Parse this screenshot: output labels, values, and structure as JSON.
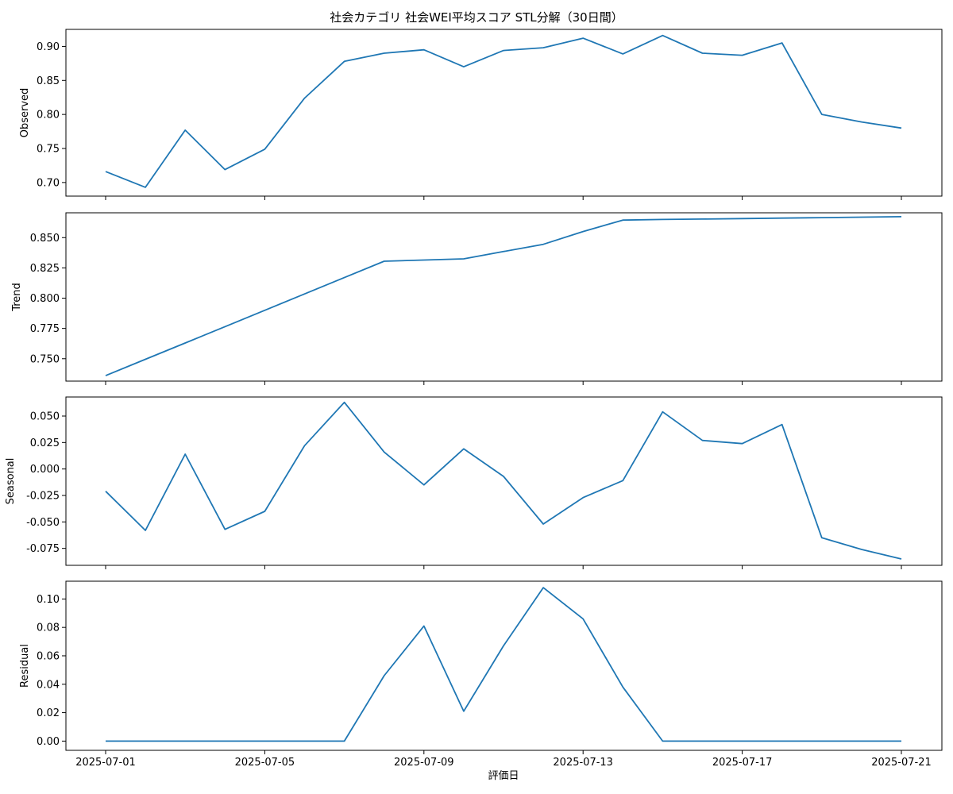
{
  "chart_data": {
    "type": "line",
    "title": "社会カテゴリ 社会WEI平均スコア STL分解（30日間）",
    "xlabel": "評価日",
    "x": [
      "2025-07-01",
      "2025-07-02",
      "2025-07-03",
      "2025-07-04",
      "2025-07-05",
      "2025-07-06",
      "2025-07-07",
      "2025-07-08",
      "2025-07-09",
      "2025-07-10",
      "2025-07-11",
      "2025-07-12",
      "2025-07-13",
      "2025-07-14",
      "2025-07-15",
      "2025-07-16",
      "2025-07-17",
      "2025-07-18",
      "2025-07-19",
      "2025-07-20",
      "2025-07-21"
    ],
    "xticks": [
      "2025-07-01",
      "2025-07-05",
      "2025-07-09",
      "2025-07-13",
      "2025-07-17",
      "2025-07-21"
    ],
    "line_color": "#1f77b4",
    "panels": [
      {
        "ylabel": "Observed",
        "ylim": [
          0.68,
          0.925
        ],
        "yticks": [
          "0.70",
          "0.75",
          "0.80",
          "0.85",
          "0.90"
        ],
        "values": [
          0.716,
          0.693,
          0.777,
          0.719,
          0.749,
          0.824,
          0.878,
          0.89,
          0.895,
          0.87,
          0.894,
          0.898,
          0.912,
          0.889,
          0.916,
          0.89,
          0.887,
          0.905,
          0.8,
          0.789,
          0.78
        ]
      },
      {
        "ylabel": "Trend",
        "ylim": [
          0.7315,
          0.8705
        ],
        "yticks": [
          "0.750",
          "0.775",
          "0.800",
          "0.825",
          "0.850"
        ],
        "values": [
          0.736,
          0.7495,
          0.763,
          0.7765,
          0.79,
          0.8035,
          0.817,
          0.8305,
          0.8315,
          0.8325,
          0.8385,
          0.8445,
          0.855,
          0.8645,
          0.865,
          0.8653,
          0.8657,
          0.8661,
          0.8665,
          0.8669,
          0.8673
        ]
      },
      {
        "ylabel": "Seasonal",
        "ylim": [
          -0.091,
          0.068
        ],
        "yticks": [
          "-0.075",
          "-0.050",
          "-0.025",
          "0.000",
          "0.025",
          "0.050"
        ],
        "values": [
          -0.021,
          -0.058,
          0.014,
          -0.057,
          -0.04,
          0.022,
          0.063,
          0.016,
          -0.015,
          0.019,
          -0.007,
          -0.052,
          -0.027,
          -0.011,
          0.054,
          0.027,
          0.024,
          0.042,
          -0.065,
          -0.076,
          -0.085
        ]
      },
      {
        "ylabel": "Residual",
        "ylim": [
          -0.0065,
          0.1125
        ],
        "yticks": [
          "0.00",
          "0.02",
          "0.04",
          "0.06",
          "0.08",
          "0.10"
        ],
        "values": [
          0,
          0,
          0,
          0,
          0,
          0,
          0,
          0.046,
          0.081,
          0.021,
          0.067,
          0.108,
          0.086,
          0.038,
          0,
          0,
          0,
          0,
          0,
          0,
          0
        ]
      }
    ]
  }
}
